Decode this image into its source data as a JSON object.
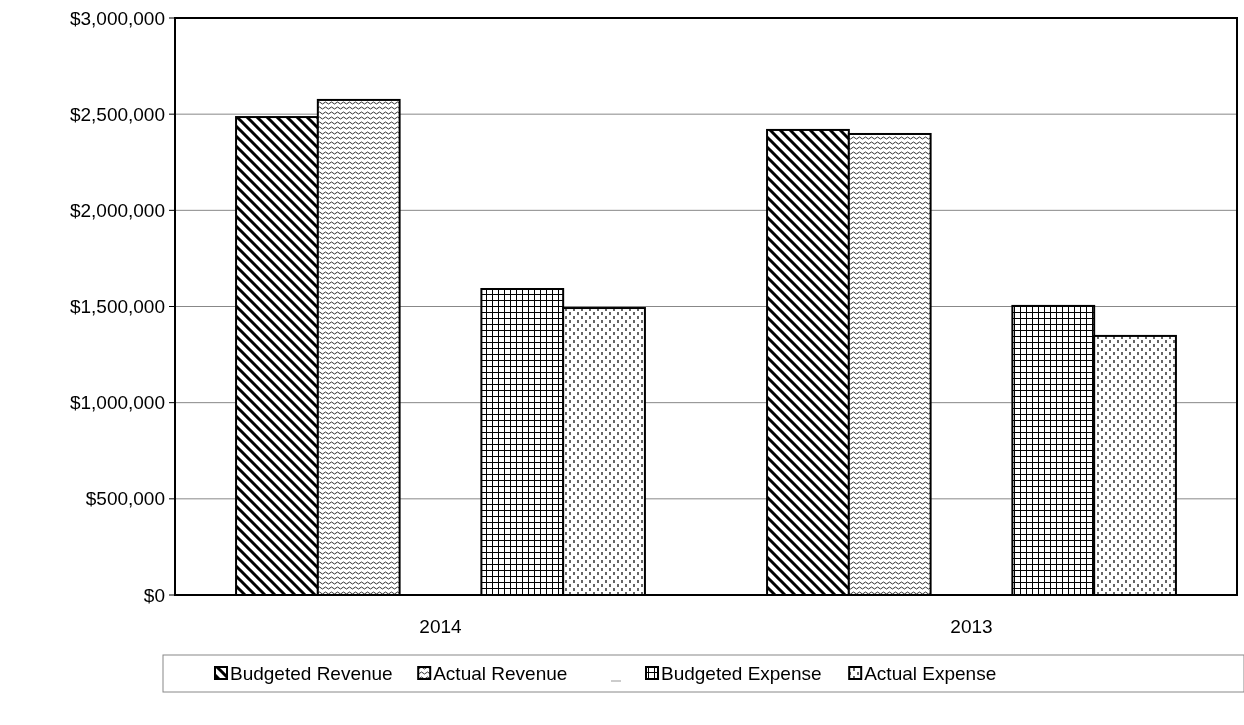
{
  "chart_data": {
    "type": "bar",
    "categories": [
      "2014",
      "2013"
    ],
    "series": [
      {
        "name": "Budgeted Revenue",
        "color": "#000000",
        "values": [
          2485000,
          2418000
        ]
      },
      {
        "name": "Actual Revenue",
        "color": "#000000",
        "values": [
          2574000,
          2397000
        ]
      },
      {
        "color": "#000000",
        "values": [
          null,
          null
        ]
      },
      {
        "name": "Budgeted Expense",
        "color": "#000000",
        "values": [
          1591000,
          1503000
        ]
      },
      {
        "name": "Actual Expense",
        "color": "#000000",
        "values": [
          1492000,
          1347000
        ]
      }
    ],
    "ylim": [
      0,
      3000000
    ],
    "yticks": [
      {
        "value": 0,
        "label": "$0"
      },
      {
        "value": 500000,
        "label": "$500,000"
      },
      {
        "value": 1000000,
        "label": "$1,000,000"
      },
      {
        "value": 1500000,
        "label": "$1,500,000"
      },
      {
        "value": 2000000,
        "label": "$2,000,000"
      },
      {
        "value": 2500000,
        "label": "$2,500,000"
      },
      {
        "value": 3000000,
        "label": "$3,000,000"
      }
    ],
    "grid": "y",
    "legend": "bottom"
  }
}
